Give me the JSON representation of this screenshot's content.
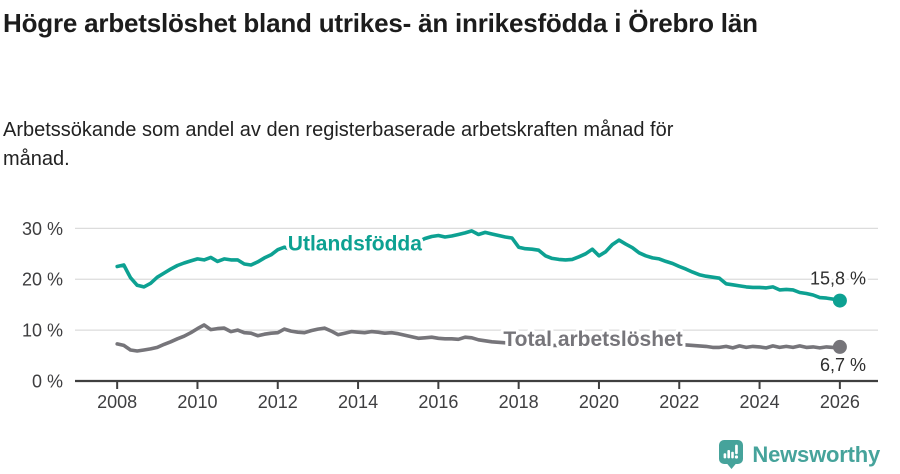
{
  "chart_data": {
    "type": "line",
    "title": "Högre arbetslöshet bland utrikes- än inrikesfödda i Örebro län",
    "subtitle": "Arbetssökande som andel av den registerbaserade arbetskraften månad för månad.",
    "unit": "%",
    "grid": "horizontal",
    "legend_position": "inline-labels",
    "x_axis": {
      "ticks": [
        2008,
        2010,
        2012,
        2014,
        2016,
        2018,
        2020,
        2022,
        2024,
        2026
      ],
      "lim": [
        2006.95,
        2026.95
      ]
    },
    "y_axis": {
      "ticks": [
        0,
        10,
        20,
        30
      ],
      "tick_suffix": " %",
      "lim": [
        0,
        34
      ]
    },
    "colors": {
      "grid": "#dcdcdc",
      "axis": "#3f3f3f",
      "tick_text": "#3e3e40",
      "value_label": "#2e2e2e",
      "background": "#ffffff",
      "accent_teal": "#0da192",
      "gray": "#76757a",
      "brand_teal": "#46a39b"
    },
    "series": [
      {
        "id": "utlandsfodda",
        "name": "Utlandsfödda",
        "color": "#0da192",
        "start_year": 2008,
        "points_per_year": 6,
        "values": [
          22.5,
          22.8,
          20.3,
          18.8,
          18.5,
          19.2,
          20.4,
          21.2,
          22.0,
          22.7,
          23.2,
          23.6,
          24.0,
          23.8,
          24.3,
          23.5,
          24.0,
          23.8,
          23.8,
          23.0,
          22.8,
          23.4,
          24.2,
          24.8,
          25.8,
          26.3,
          25.8,
          26.3,
          26.1,
          26.0,
          26.1,
          25.8,
          25.7,
          26.0,
          26.5,
          26.9,
          27.0,
          27.4,
          27.1,
          27.3,
          27.0,
          27.5,
          27.8,
          27.5,
          27.6,
          27.4,
          28.0,
          28.4,
          28.6,
          28.3,
          28.5,
          28.8,
          29.1,
          29.5,
          28.8,
          29.2,
          28.9,
          28.6,
          28.3,
          28.1,
          26.3,
          26.0,
          25.9,
          25.7,
          24.6,
          24.1,
          23.9,
          23.8,
          23.9,
          24.4,
          25.0,
          25.9,
          24.6,
          25.4,
          26.8,
          27.7,
          26.9,
          26.2,
          25.2,
          24.6,
          24.2,
          24.0,
          23.5,
          23.1,
          22.5,
          22.0,
          21.4,
          20.9,
          20.6,
          20.4,
          20.2,
          19.1,
          18.9,
          18.7,
          18.5,
          18.4,
          18.4,
          18.3,
          18.5,
          17.9,
          18.0,
          17.9,
          17.4,
          17.2,
          16.9,
          16.4,
          16.3,
          16.1,
          15.8
        ],
        "last_value": 15.8,
        "end_label": "15,8 %",
        "label_x": 2012.25,
        "label_y": 25.6,
        "end_label_dy": -16
      },
      {
        "id": "total",
        "name": "Total arbetslöshet",
        "color": "#76757a",
        "start_year": 2008,
        "points_per_year": 6,
        "values": [
          7.3,
          7.0,
          6.1,
          5.9,
          6.1,
          6.3,
          6.6,
          7.2,
          7.7,
          8.3,
          8.8,
          9.5,
          10.3,
          11.0,
          10.1,
          10.3,
          10.4,
          9.7,
          10.0,
          9.5,
          9.4,
          8.9,
          9.2,
          9.4,
          9.5,
          10.2,
          9.8,
          9.6,
          9.5,
          9.9,
          10.2,
          10.4,
          9.8,
          9.1,
          9.4,
          9.7,
          9.6,
          9.5,
          9.7,
          9.6,
          9.4,
          9.5,
          9.3,
          9.0,
          8.7,
          8.4,
          8.5,
          8.6,
          8.4,
          8.3,
          8.3,
          8.2,
          8.6,
          8.5,
          8.1,
          7.9,
          7.7,
          7.6,
          7.5,
          7.4,
          7.4,
          7.3,
          7.2,
          7.2,
          7.1,
          7.0,
          7.0,
          7.0,
          7.1,
          7.2,
          7.3,
          7.4,
          7.5,
          8.2,
          8.7,
          8.8,
          8.7,
          8.5,
          8.3,
          8.1,
          7.9,
          7.7,
          7.5,
          7.3,
          7.2,
          7.1,
          7.0,
          6.9,
          6.8,
          6.6,
          6.6,
          6.8,
          6.5,
          6.9,
          6.6,
          6.8,
          6.7,
          6.5,
          6.9,
          6.6,
          6.8,
          6.6,
          6.9,
          6.6,
          6.7,
          6.5,
          6.7,
          6.6,
          6.7
        ],
        "last_value": 6.7,
        "end_label": "6,7 %",
        "label_x": 2017.62,
        "label_y": 6.85,
        "end_label_dy": 24
      }
    ]
  },
  "footer": {
    "brand": "Newsworthy"
  }
}
